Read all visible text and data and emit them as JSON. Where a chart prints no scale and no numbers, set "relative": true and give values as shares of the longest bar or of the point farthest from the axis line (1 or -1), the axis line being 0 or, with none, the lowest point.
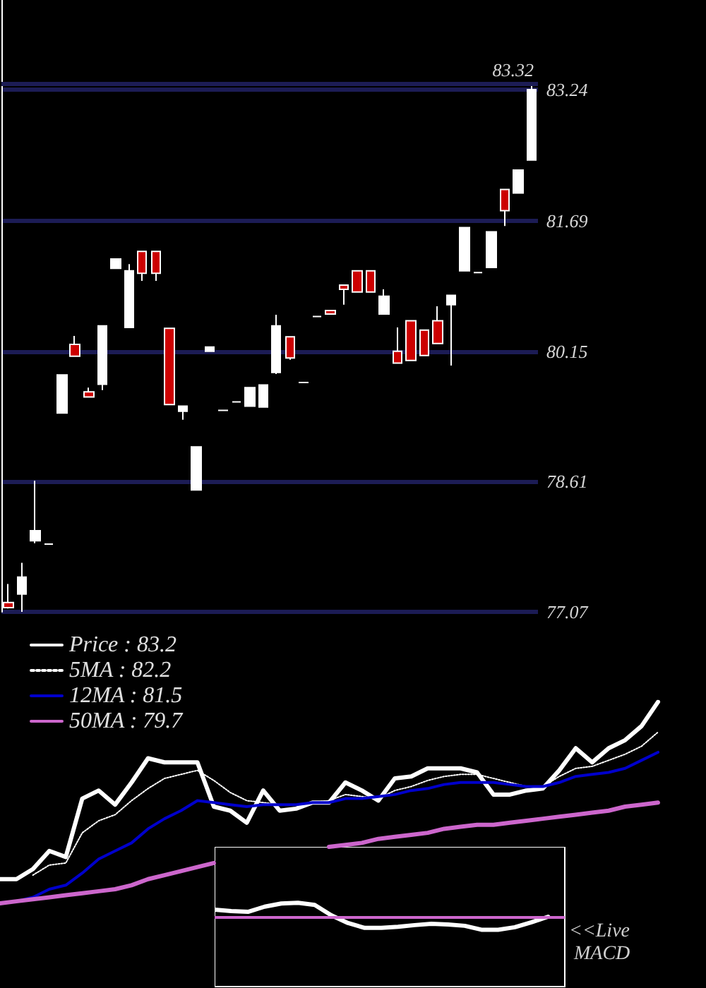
{
  "chart_data": [
    {
      "type": "candlestick",
      "categories": [
        null,
        null,
        null,
        null,
        null,
        null,
        null,
        null,
        null,
        null,
        null,
        null,
        null,
        null,
        null,
        null,
        null,
        null,
        null,
        null,
        null,
        null,
        null,
        null,
        null,
        null,
        null,
        null,
        null,
        null,
        null,
        null,
        null,
        null,
        null,
        null,
        null,
        null,
        null,
        null
      ],
      "ohlc": [
        [
          77.18,
          77.4,
          77.11,
          77.12
        ],
        [
          77.28,
          77.65,
          77.07,
          77.48
        ],
        [
          77.91,
          78.62,
          77.88,
          78.03
        ],
        [
          77.87,
          77.87,
          77.87,
          77.87
        ],
        [
          79.42,
          79.87,
          79.42,
          79.87
        ],
        [
          80.23,
          80.33,
          80.09,
          80.09
        ],
        [
          79.67,
          79.72,
          79.61,
          79.61
        ],
        [
          79.76,
          80.45,
          79.69,
          80.45
        ],
        [
          81.13,
          81.24,
          81.13,
          81.24
        ],
        [
          80.43,
          81.18,
          80.43,
          81.1
        ],
        [
          81.33,
          81.33,
          80.98,
          81.07
        ],
        [
          81.33,
          81.33,
          80.98,
          81.07
        ],
        [
          80.42,
          80.42,
          79.52,
          79.52
        ],
        [
          79.44,
          79.5,
          79.34,
          79.5
        ],
        [
          78.51,
          79.02,
          78.51,
          79.02
        ],
        [
          80.15,
          80.2,
          80.15,
          80.2
        ],
        [
          79.45,
          79.45,
          79.45,
          79.45
        ],
        [
          79.55,
          79.55,
          79.55,
          79.55
        ],
        [
          79.5,
          79.72,
          79.5,
          79.72
        ],
        [
          79.49,
          79.75,
          79.49,
          79.75
        ],
        [
          79.9,
          80.58,
          79.88,
          80.45
        ],
        [
          80.32,
          80.32,
          80.05,
          80.07
        ],
        [
          79.78,
          79.78,
          79.78,
          79.78
        ],
        [
          80.56,
          80.56,
          80.56,
          80.56
        ],
        [
          80.63,
          80.63,
          80.59,
          80.59
        ],
        [
          80.93,
          80.93,
          80.7,
          80.88
        ],
        [
          81.1,
          81.1,
          80.85,
          80.85
        ],
        [
          81.1,
          81.1,
          80.85,
          80.85
        ],
        [
          80.59,
          80.88,
          80.59,
          80.8
        ],
        [
          80.15,
          80.43,
          80.01,
          80.01
        ],
        [
          80.51,
          80.51,
          80.04,
          80.04
        ],
        [
          80.4,
          80.4,
          80.1,
          80.1
        ],
        [
          80.51,
          80.68,
          80.24,
          80.24
        ],
        [
          80.7,
          80.81,
          79.98,
          80.81
        ],
        [
          81.1,
          81.61,
          81.1,
          81.61
        ],
        [
          81.08,
          81.08,
          81.08,
          81.08
        ],
        [
          81.14,
          81.56,
          81.14,
          81.56
        ],
        [
          82.06,
          82.06,
          81.63,
          81.81
        ],
        [
          82.02,
          82.29,
          82.02,
          82.29
        ],
        [
          82.41,
          83.32,
          82.41,
          83.24
        ]
      ],
      "colors": [
        "#cc0000",
        "#ffffff",
        "#ffffff",
        "#ffffff",
        "#ffffff",
        "#cc0000",
        "#cc0000",
        "#ffffff",
        "#ffffff",
        "#ffffff",
        "#cc0000",
        "#cc0000",
        "#cc0000",
        "#ffffff",
        "#ffffff",
        "#ffffff",
        "#ffffff",
        "#ffffff",
        "#ffffff",
        "#ffffff",
        "#ffffff",
        "#cc0000",
        "#ffffff",
        "#ffffff",
        "#cc0000",
        "#cc0000",
        "#cc0000",
        "#cc0000",
        "#ffffff",
        "#cc0000",
        "#cc0000",
        "#cc0000",
        "#cc0000",
        "#ffffff",
        "#ffffff",
        "#ffffff",
        "#ffffff",
        "#cc0000",
        "#ffffff",
        "#ffffff"
      ],
      "ylim": [
        77.07,
        84.3
      ],
      "yticks": [
        77.07,
        78.61,
        80.15,
        81.69,
        83.24
      ],
      "grid": "y",
      "tick_labels": "y",
      "ref_lines": [
        {
          "axis": "y",
          "value": 83.32,
          "label": "83.32",
          "color": "#1c1c55"
        }
      ]
    },
    {
      "type": "line",
      "relative": true,
      "categories": [
        null,
        null,
        null,
        null,
        null,
        null,
        null,
        null,
        null,
        null,
        null,
        null,
        null,
        null,
        null,
        null,
        null,
        null,
        null,
        null,
        null,
        null,
        null,
        null,
        null,
        null,
        null,
        null,
        null,
        null,
        null,
        null,
        null,
        null,
        null,
        null,
        null,
        null,
        null,
        null,
        null
      ],
      "series": [
        {
          "name": "Price : 83.2",
          "color": "#ffffff",
          "values": [
            0.12,
            0.12,
            0.17,
            0.26,
            0.23,
            0.52,
            0.56,
            0.49,
            0.6,
            0.72,
            0.7,
            0.7,
            0.7,
            0.48,
            0.46,
            0.4,
            0.56,
            0.46,
            0.47,
            0.5,
            0.5,
            0.6,
            0.56,
            0.51,
            0.62,
            0.63,
            0.67,
            0.67,
            0.67,
            0.65,
            0.54,
            0.54,
            0.56,
            0.57,
            0.66,
            0.77,
            0.7,
            0.77,
            0.81,
            0.88,
            1.0
          ]
        },
        {
          "name": "5MA : 82.2",
          "color": "#ffffff",
          "line_style": "dotted",
          "values": [
            null,
            null,
            0.14,
            0.19,
            0.2,
            0.35,
            0.41,
            0.44,
            0.51,
            0.57,
            0.62,
            0.64,
            0.66,
            0.61,
            0.55,
            0.51,
            0.5,
            0.49,
            0.49,
            0.5,
            0.51,
            0.54,
            0.53,
            0.52,
            0.56,
            0.58,
            0.61,
            0.63,
            0.64,
            0.64,
            0.62,
            0.6,
            0.58,
            0.58,
            0.63,
            0.67,
            0.68,
            0.71,
            0.74,
            0.78,
            0.85
          ]
        },
        {
          "name": "12MA : 81.5",
          "color": "#0000cc",
          "values": [
            null,
            0.01,
            0.03,
            0.07,
            0.09,
            0.15,
            0.22,
            0.26,
            0.3,
            0.37,
            0.42,
            0.46,
            0.51,
            0.5,
            0.49,
            0.48,
            0.49,
            0.49,
            0.49,
            0.5,
            0.5,
            0.52,
            0.52,
            0.53,
            0.54,
            0.56,
            0.57,
            0.59,
            0.6,
            0.6,
            0.6,
            0.59,
            0.58,
            0.58,
            0.6,
            0.63,
            0.64,
            0.65,
            0.67,
            0.71,
            0.75
          ]
        },
        {
          "name": "50MA : 79.7",
          "color": "#cc66cc",
          "values": [
            0.0,
            0.01,
            0.02,
            0.03,
            0.04,
            0.05,
            0.06,
            0.07,
            0.09,
            0.12,
            0.14,
            0.16,
            0.18,
            0.2,
            null,
            null,
            null,
            null,
            null,
            null,
            0.28,
            0.29,
            0.3,
            0.32,
            0.33,
            0.34,
            0.35,
            0.37,
            0.38,
            0.39,
            0.39,
            0.4,
            0.41,
            0.42,
            0.43,
            0.44,
            0.45,
            0.46,
            0.48,
            0.49,
            0.5
          ]
        }
      ],
      "line_style": "solid",
      "marker": "none",
      "legend": "top left",
      "tick_labels": false
    },
    {
      "type": "line",
      "relative": true,
      "categories": [
        null,
        null,
        null,
        null,
        null,
        null,
        null,
        null,
        null,
        null,
        null,
        null,
        null,
        null,
        null,
        null,
        null,
        null,
        null,
        null,
        null,
        null
      ],
      "values": [
        0.5,
        0.4,
        0.35,
        0.72,
        0.95,
        1.0,
        0.85,
        0.1,
        -0.45,
        -0.8,
        -0.8,
        -0.72,
        -0.6,
        -0.5,
        -0.55,
        -0.65,
        -0.93,
        -0.93,
        -0.75,
        -0.4,
        0.0,
        null
      ],
      "color": "#ffffff",
      "ref_lines": [
        {
          "axis": "y",
          "value": 0,
          "color": "#cc66cc"
        }
      ],
      "annotations": [
        "<<Live MACD"
      ],
      "marker": "none",
      "tick_labels": false
    }
  ]
}
